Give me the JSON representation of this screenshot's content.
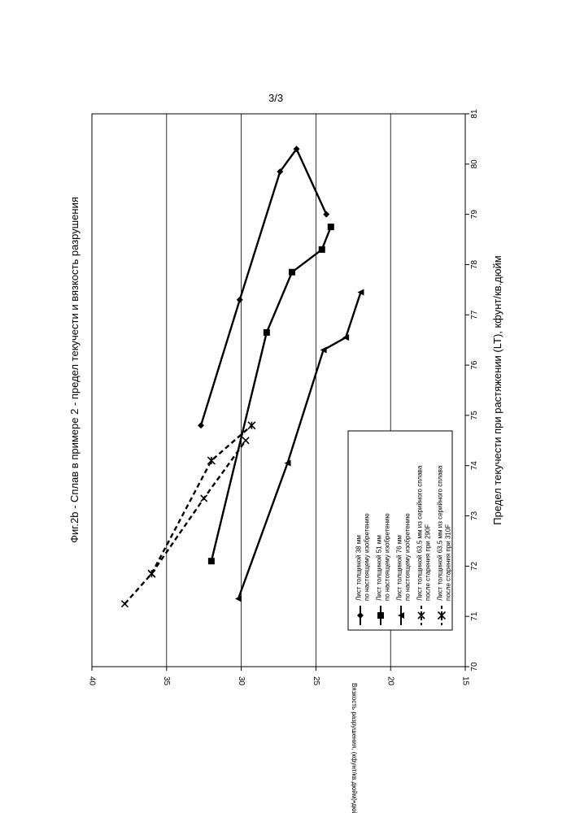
{
  "page": {
    "number": "3/3"
  },
  "chart_data": {
    "type": "line",
    "title": "Фиг.2b - Сплав в примере 2 - предел текучести и вязкость разрушения",
    "xlabel": "Предел текучести при растяжении (LT), кфунт/кв.дюйм",
    "ylabel": "Вязкость разрушения, (кфунт/кв.дюйм)•дюйм",
    "ylabel_superscript": "1/2",
    "xlim": [
      70,
      81
    ],
    "ylim": [
      15,
      40
    ],
    "x_ticks": [
      "70",
      "71",
      "72",
      "73",
      "74",
      "75",
      "76",
      "77",
      "78",
      "79",
      "80",
      "81"
    ],
    "y_ticks": [
      "15",
      "20",
      "25",
      "30",
      "35",
      "40"
    ],
    "grid": "horizontal",
    "legend_position": "bottom-right",
    "series": [
      {
        "name": "Лист толщиной 38 мм по настоящему изобретению",
        "style": "solid",
        "marker": "diamond",
        "x": [
          74.8,
          77.3,
          79.85,
          80.3,
          79.0
        ],
        "y": [
          32.7,
          30.1,
          27.4,
          26.3,
          24.3
        ]
      },
      {
        "name": "Лист толщиной 51 мм по настоящему изобретению",
        "style": "solid",
        "marker": "square",
        "x": [
          72.1,
          76.65,
          77.85,
          78.3,
          78.75
        ],
        "y": [
          32.0,
          28.3,
          26.6,
          24.6,
          24.0
        ]
      },
      {
        "name": "Лист толщиной 76 мм по настоящему изобретению",
        "style": "solid",
        "marker": "triangle",
        "x": [
          71.35,
          74.05,
          76.3,
          76.55,
          77.45
        ],
        "y": [
          30.2,
          26.9,
          24.5,
          23.0,
          22.0
        ]
      },
      {
        "name": "Лист толщиной 63,5 мм из серийного сплава после старения при 290F",
        "style": "dashed",
        "marker": "x",
        "x": [
          71.25,
          71.85,
          73.35,
          74.5
        ],
        "y": [
          37.8,
          36.0,
          32.5,
          29.7
        ]
      },
      {
        "name": "Лист толщиной 63,5 мм из серийного сплава после старения при 310F",
        "style": "dashed",
        "marker": "asterisk",
        "x": [
          71.85,
          74.1,
          74.8
        ],
        "y": [
          36.0,
          32.0,
          29.3
        ]
      }
    ],
    "legend_lines": [
      [
        "Лист толщиной 38 мм",
        "по настоящему изобретению"
      ],
      [
        "Лист толщиной 51 мм",
        "по настоящему изобретению"
      ],
      [
        "Лист толщиной 76 мм",
        "по настоящему изобретению"
      ],
      [
        "Лист толщиной 63,5 мм из серийного сплава",
        "после старения при 290F"
      ],
      [
        "Лист толщиной 63,5 мм из серийного сплава",
        "после старения при 310F"
      ]
    ]
  }
}
